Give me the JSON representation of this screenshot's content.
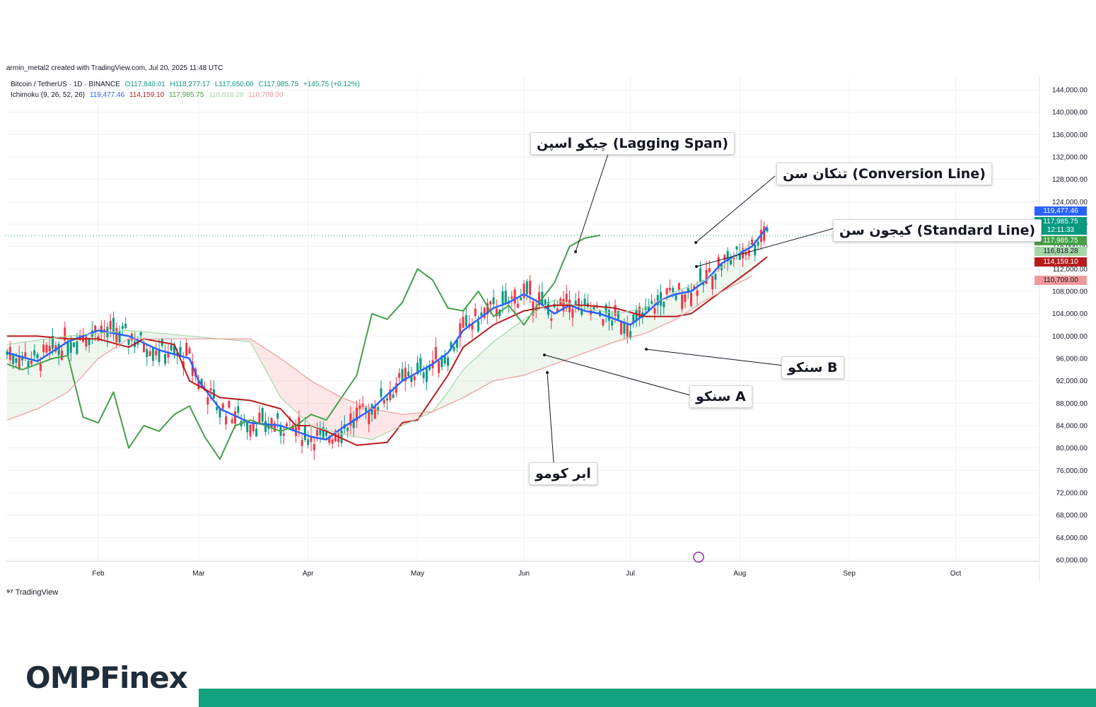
{
  "header": {
    "credit": "armin_metal2 created with TradingView.com, Jul 20, 2025 11:48 UTC"
  },
  "legend": {
    "symbol": "Bitcoin / TetherUS · 1D · BINANCE",
    "open": "O117,840.01",
    "high": "H118,277.17",
    "low": "L117,650.00",
    "close": "C117,985.75",
    "change": "+145.75 (+0.12%)",
    "ichimoku_label": "Ichimoku (9, 26, 52, 26)",
    "ichimoku_values": [
      "119,477.46",
      "114,159.10",
      "117,985.75",
      "116,818.28",
      "110,709.00"
    ]
  },
  "annotations": {
    "lagging": "چیکو اسپن (Lagging Span)",
    "conversion": "تنکان سن (Conversion Line)",
    "standard": "کیجون سن (Standard Line)",
    "senkou_b": "سنکو B",
    "senkou_a": "سنکو A",
    "kumo": "ابر کومو"
  },
  "price_tags": [
    {
      "label": "119,477.46",
      "color": "#2962ff"
    },
    {
      "label": "117,985.75",
      "color": "#089981"
    },
    {
      "label": "12:11:33",
      "color": "#089981"
    },
    {
      "label": "117,985.75",
      "color": "#43a047"
    },
    {
      "label": "116,818.28",
      "color": "#a5d6a7"
    },
    {
      "label": "114,159.10",
      "color": "#b71c1c"
    },
    {
      "label": "110,709.00",
      "color": "#ef9a9a"
    }
  ],
  "footer": {
    "tv_logo": "TradingView",
    "brand": "OMPFinex"
  },
  "colors": {
    "up": "#089981",
    "down": "#f23645",
    "tenkan": "#2962ff",
    "kijun": "#b71c1c",
    "chikou": "#43a047",
    "spanA": "#a5d6a7",
    "spanB": "#ef9a9a",
    "brand_bar": "#11a37f"
  },
  "chart_data": {
    "type": "candlestick",
    "title": "Bitcoin / TetherUS · 1D · BINANCE",
    "x_ticks": [
      "Feb",
      "Mar",
      "Apr",
      "May",
      "Jun",
      "Jul",
      "Aug",
      "Sep",
      "Oct"
    ],
    "y_ticks": [
      "60,000.00",
      "64,000.00",
      "68,000.00",
      "72,000.00",
      "76,000.00",
      "80,000.00",
      "84,000.00",
      "88,000.00",
      "92,000.00",
      "96,000.00",
      "100,000.00",
      "104,000.00",
      "108,000.00",
      "112,000.00",
      "116,000.00",
      "120,000.00",
      "124,000.00",
      "128,000.00",
      "132,000.00",
      "136,000.00",
      "140,000.00",
      "144,000.00"
    ],
    "ylim": [
      58000,
      146000
    ],
    "grid": true,
    "last_price": 117985.75,
    "series": [
      {
        "name": "Conversion Line",
        "points": [
          [
            0,
            97000
          ],
          [
            10,
            95500
          ],
          [
            20,
            99000
          ],
          [
            30,
            101000
          ],
          [
            40,
            100000
          ],
          [
            50,
            97500
          ],
          [
            60,
            96000
          ],
          [
            63,
            92000
          ],
          [
            70,
            87000
          ],
          [
            80,
            84500
          ],
          [
            90,
            84000
          ],
          [
            100,
            82000
          ],
          [
            105,
            81500
          ],
          [
            110,
            83500
          ],
          [
            120,
            87000
          ],
          [
            130,
            92000
          ],
          [
            140,
            95000
          ],
          [
            145,
            97000
          ],
          [
            150,
            101000
          ],
          [
            155,
            103000
          ],
          [
            160,
            105000
          ],
          [
            165,
            106000
          ],
          [
            170,
            107500
          ],
          [
            175,
            106000
          ],
          [
            180,
            104000
          ],
          [
            185,
            105500
          ],
          [
            190,
            104500
          ],
          [
            195,
            104000
          ],
          [
            200,
            103000
          ],
          [
            205,
            102000
          ],
          [
            210,
            104000
          ],
          [
            215,
            106500
          ],
          [
            220,
            107500
          ],
          [
            225,
            108000
          ],
          [
            230,
            110000
          ],
          [
            235,
            113000
          ],
          [
            240,
            114500
          ],
          [
            245,
            116000
          ],
          [
            250,
            119477
          ]
        ]
      },
      {
        "name": "Standard Line",
        "points": [
          [
            0,
            100000
          ],
          [
            10,
            100000
          ],
          [
            20,
            99500
          ],
          [
            30,
            99500
          ],
          [
            40,
            98000
          ],
          [
            45,
            99500
          ],
          [
            55,
            98500
          ],
          [
            60,
            92000
          ],
          [
            70,
            89000
          ],
          [
            80,
            88500
          ],
          [
            90,
            87000
          ],
          [
            95,
            84000
          ],
          [
            100,
            84000
          ],
          [
            105,
            83000
          ],
          [
            115,
            80500
          ],
          [
            125,
            81000
          ],
          [
            130,
            84500
          ],
          [
            135,
            85000
          ],
          [
            140,
            89000
          ],
          [
            145,
            93000
          ],
          [
            150,
            98000
          ],
          [
            160,
            102000
          ],
          [
            170,
            104500
          ],
          [
            180,
            105500
          ],
          [
            190,
            105500
          ],
          [
            200,
            105000
          ],
          [
            210,
            103500
          ],
          [
            220,
            103500
          ],
          [
            225,
            104000
          ],
          [
            230,
            106000
          ],
          [
            240,
            110000
          ],
          [
            245,
            112000
          ],
          [
            250,
            114159
          ]
        ]
      },
      {
        "name": "Lagging Span",
        "points": [
          [
            0,
            95000
          ],
          [
            5,
            94000
          ],
          [
            10,
            95000
          ],
          [
            15,
            96000
          ],
          [
            20,
            96500
          ],
          [
            25,
            85500
          ],
          [
            30,
            84500
          ],
          [
            35,
            90000
          ],
          [
            40,
            80000
          ],
          [
            45,
            84000
          ],
          [
            50,
            83000
          ],
          [
            55,
            86000
          ],
          [
            60,
            87500
          ],
          [
            65,
            82000
          ],
          [
            70,
            78000
          ],
          [
            75,
            84000
          ],
          [
            80,
            85000
          ],
          [
            90,
            83000
          ],
          [
            95,
            84000
          ],
          [
            100,
            86000
          ],
          [
            105,
            85000
          ],
          [
            110,
            89000
          ],
          [
            115,
            93000
          ],
          [
            120,
            104000
          ],
          [
            125,
            103000
          ],
          [
            130,
            106000
          ],
          [
            135,
            112000
          ],
          [
            140,
            110000
          ],
          [
            145,
            105000
          ],
          [
            150,
            104500
          ],
          [
            155,
            108000
          ],
          [
            160,
            103500
          ],
          [
            165,
            105500
          ],
          [
            170,
            102000
          ],
          [
            175,
            106000
          ],
          [
            180,
            109500
          ],
          [
            185,
            116000
          ],
          [
            190,
            117500
          ],
          [
            195,
            118000
          ]
        ]
      },
      {
        "name": "Senkou Span A",
        "points": [
          [
            0,
            98500
          ],
          [
            20,
            100000
          ],
          [
            40,
            101000
          ],
          [
            60,
            100000
          ],
          [
            80,
            99000
          ],
          [
            90,
            89000
          ],
          [
            100,
            84000
          ],
          [
            110,
            82500
          ],
          [
            120,
            81500
          ],
          [
            130,
            84000
          ],
          [
            140,
            86500
          ],
          [
            145,
            90000
          ],
          [
            150,
            94000
          ],
          [
            160,
            99000
          ],
          [
            170,
            103000
          ],
          [
            180,
            106500
          ],
          [
            190,
            105000
          ],
          [
            200,
            104000
          ],
          [
            210,
            105000
          ],
          [
            220,
            108000
          ],
          [
            230,
            110000
          ],
          [
            245,
            116818
          ]
        ]
      },
      {
        "name": "Senkou Span B",
        "points": [
          [
            0,
            85000
          ],
          [
            10,
            87000
          ],
          [
            20,
            90000
          ],
          [
            30,
            96000
          ],
          [
            40,
            99500
          ],
          [
            60,
            99500
          ],
          [
            80,
            99500
          ],
          [
            90,
            96000
          ],
          [
            100,
            92000
          ],
          [
            110,
            89000
          ],
          [
            120,
            87000
          ],
          [
            130,
            86000
          ],
          [
            140,
            86500
          ],
          [
            150,
            89000
          ],
          [
            160,
            92000
          ],
          [
            170,
            93000
          ],
          [
            180,
            95000
          ],
          [
            190,
            97000
          ],
          [
            200,
            99000
          ],
          [
            210,
            100500
          ],
          [
            220,
            103000
          ],
          [
            230,
            106500
          ],
          [
            245,
            110709
          ]
        ]
      }
    ]
  }
}
